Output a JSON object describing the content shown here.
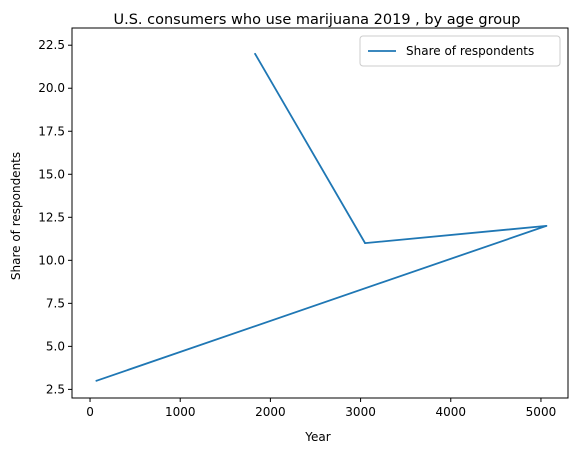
{
  "chart_data": {
    "type": "line",
    "title": "U.S. consumers who use marijuana 2019 , by age group",
    "xlabel": "Year",
    "ylabel": "Share of respondents",
    "xlim": [
      -200,
      5300
    ],
    "ylim": [
      2.0,
      23.5
    ],
    "xticks": [
      0,
      1000,
      2000,
      3000,
      4000,
      5000
    ],
    "yticks": [
      2.5,
      5.0,
      7.5,
      10.0,
      12.5,
      15.0,
      17.5,
      20.0,
      22.5
    ],
    "xtick_labels": [
      "0",
      "1000",
      "2000",
      "3000",
      "4000",
      "5000"
    ],
    "ytick_labels": [
      "2.5",
      "5.0",
      "7.5",
      "10.0",
      "12.5",
      "15.0",
      "17.5",
      "20.0",
      "22.5"
    ],
    "grid": false,
    "legend_position": "top-right",
    "series": [
      {
        "name": "Share of respondents",
        "color": "#1f77b4",
        "x": [
          1830,
          3050,
          5060,
          70
        ],
        "y": [
          22,
          11,
          12,
          3
        ]
      }
    ]
  }
}
